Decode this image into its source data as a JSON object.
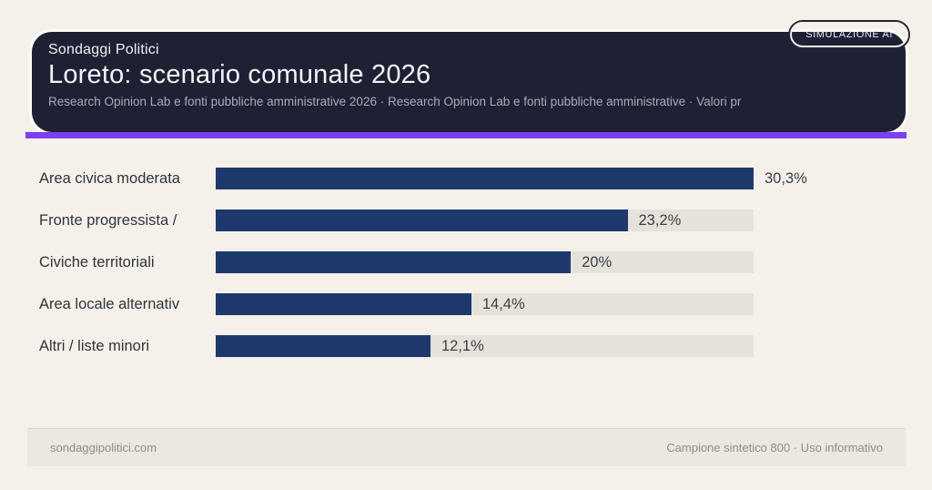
{
  "header": {
    "kicker": "Sondaggi Politici",
    "title": "Loreto: scenario comunale 2026",
    "subtitle": "Research Opinion Lab e fonti pubbliche amministrative 2026 · Research Opinion Lab e fonti pubbliche amministrative · Valori pr",
    "badge": "SIMULAZIONE AI"
  },
  "footer": {
    "left": "sondaggipolitici.com",
    "right": "Campione sintetico 800 · Uso informativo"
  },
  "colors": {
    "page_bg": "#f5f1ea",
    "card_bg": "#1d2133",
    "accent_purple": "#7d3ff0",
    "bar_navy": "#1e3a6d",
    "track_gray": "#e5e2da",
    "footer_bg": "#ebe8e1"
  },
  "chart_data": {
    "type": "bar",
    "orientation": "horizontal",
    "title": "Loreto: scenario comunale 2026",
    "xlabel": "",
    "ylabel": "",
    "xlim": [
      0,
      30.3
    ],
    "grid": false,
    "legend": false,
    "categories": [
      "Area civica moderata",
      "Fronte progressista /",
      "Civiche territoriali",
      "Area locale alternativ",
      "Altri / liste minori"
    ],
    "values": [
      30.3,
      23.2,
      20,
      14.4,
      12.1
    ],
    "value_labels": [
      "30,3%",
      "23,2%",
      "20%",
      "14,4%",
      "12,1%"
    ],
    "rows": [
      {
        "label": "Area civica moderata",
        "value": 30.3,
        "display": "30,3%"
      },
      {
        "label": "Fronte progressista /",
        "value": 23.2,
        "display": "23,2%"
      },
      {
        "label": "Civiche territoriali",
        "value": 20,
        "display": "20%"
      },
      {
        "label": "Area locale alternativ",
        "value": 14.4,
        "display": "14,4%"
      },
      {
        "label": "Altri / liste minori",
        "value": 12.1,
        "display": "12,1%"
      }
    ]
  }
}
